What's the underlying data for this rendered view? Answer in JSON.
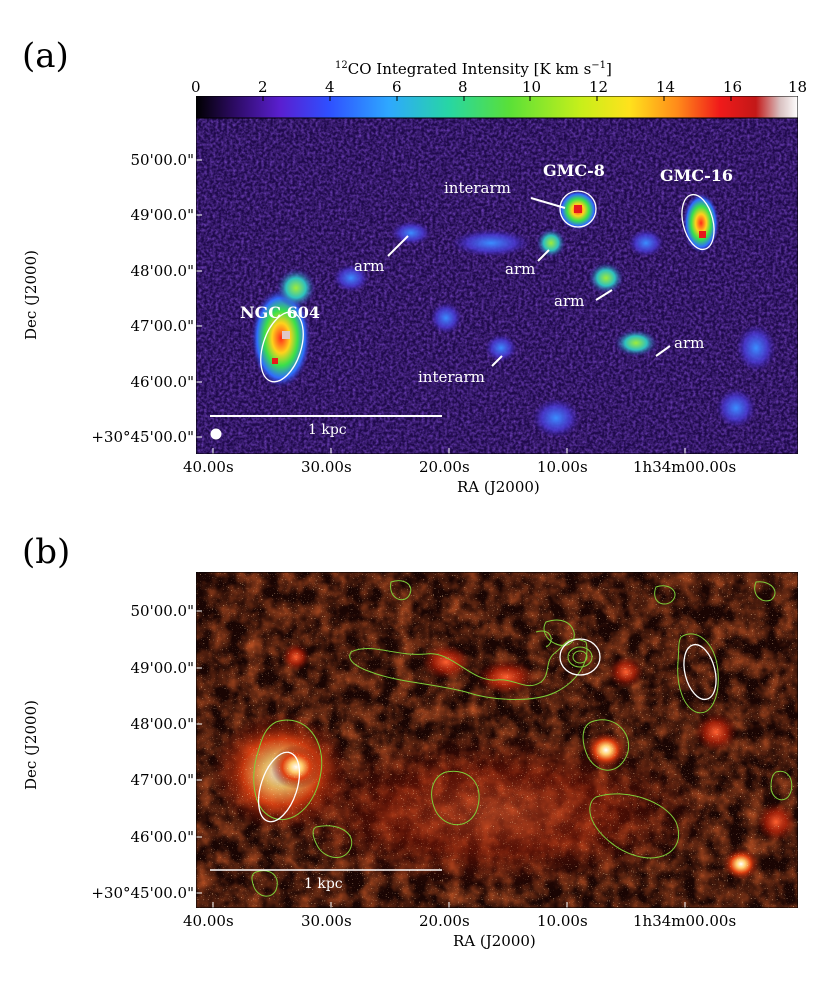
{
  "panel_a": {
    "label": "(a)",
    "colorbar": {
      "title_sup": "12",
      "title_main": "CO Integrated Intensity [K km s",
      "title_exp": "−1",
      "title_close": "]",
      "ticks": [
        "0",
        "2",
        "4",
        "6",
        "8",
        "10",
        "12",
        "14",
        "16",
        "18"
      ],
      "range": [
        0,
        18
      ],
      "colormap": [
        "#000000",
        "#2a0a5e",
        "#5a1fd0",
        "#2f4fff",
        "#2ea8ff",
        "#27d6a4",
        "#59e038",
        "#c8ef1a",
        "#ffe21c",
        "#ff8a1a",
        "#f01a1a",
        "#c31818",
        "#d8c0c0",
        "#ffffff"
      ]
    },
    "y_ticks": [
      "50'00.0\"",
      "49'00.0\"",
      "48'00.0\"",
      "47'00.0\"",
      "46'00.0\"",
      "+30°45'00.0\""
    ],
    "x_ticks": [
      "40.00s",
      "30.00s",
      "20.00s",
      "10.00s",
      "1h34m00.00s"
    ],
    "ylabel": "Dec (J2000)",
    "xlabel": "RA (J2000)",
    "labels": {
      "ngc604": "NGC 604",
      "gmc8": "GMC-8",
      "gmc16": "GMC-16",
      "interarm_top": "interarm",
      "arm1": "arm",
      "arm2": "arm",
      "arm3": "arm",
      "arm4": "arm",
      "interarm_bottom": "interarm"
    },
    "scalebar": "1 kpc"
  },
  "panel_b": {
    "label": "(b)",
    "y_ticks": [
      "50'00.0\"",
      "49'00.0\"",
      "48'00.0\"",
      "47'00.0\"",
      "46'00.0\"",
      "+30°45'00.0\""
    ],
    "x_ticks": [
      "40.00s",
      "30.00s",
      "20.00s",
      "10.00s",
      "1h34m00.00s"
    ],
    "ylabel": "Dec (J2000)",
    "xlabel": "RA (J2000)",
    "scalebar": "1 kpc"
  }
}
